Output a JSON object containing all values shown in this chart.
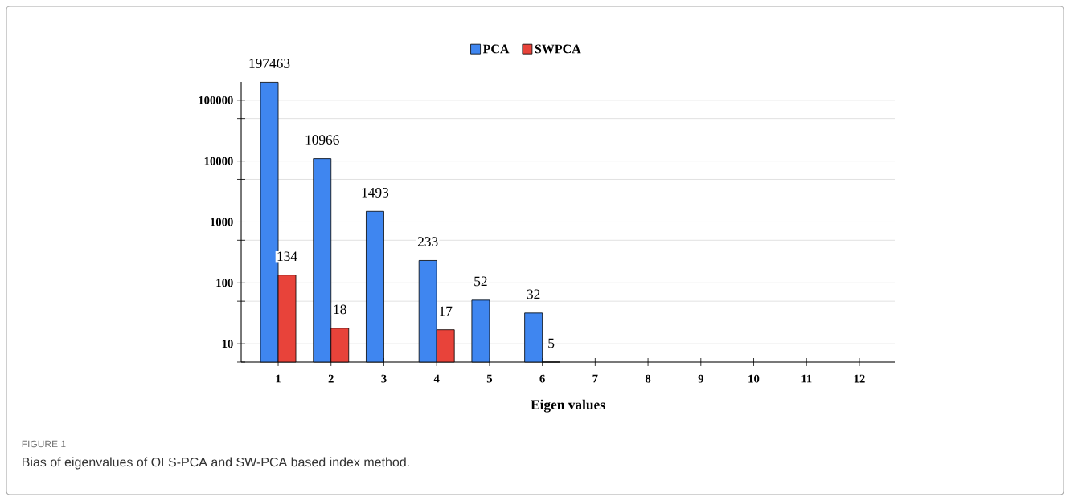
{
  "chart_data": {
    "type": "bar",
    "xlabel": "Eigen values",
    "categories": [
      "1",
      "2",
      "3",
      "4",
      "5",
      "6",
      "7",
      "8",
      "9",
      "10",
      "11",
      "12"
    ],
    "series": [
      {
        "name": "PCA",
        "color": "#3f86f0",
        "values": [
          197463,
          10966,
          1493,
          233,
          52,
          32,
          null,
          null,
          null,
          null,
          null,
          null
        ]
      },
      {
        "name": "SWPCA",
        "color": "#e8433a",
        "values": [
          134,
          18,
          null,
          17,
          null,
          5,
          null,
          null,
          null,
          null,
          null,
          null
        ]
      }
    ],
    "log": "y",
    "ylim": [
      5,
      200000
    ],
    "yticks": [
      {
        "value": 5,
        "label": null
      },
      10,
      {
        "value": 50,
        "label": null
      },
      100,
      {
        "value": 500,
        "label": null
      },
      1000,
      {
        "value": 5000,
        "label": null
      },
      10000,
      {
        "value": 50000,
        "label": null
      },
      100000
    ],
    "grid": "y",
    "legend": "top",
    "data_labels": true,
    "annotations": [
      "FIGURE 1",
      "Bias of eigenvalues of OLS-PCA and SW-PCA based index method."
    ]
  }
}
